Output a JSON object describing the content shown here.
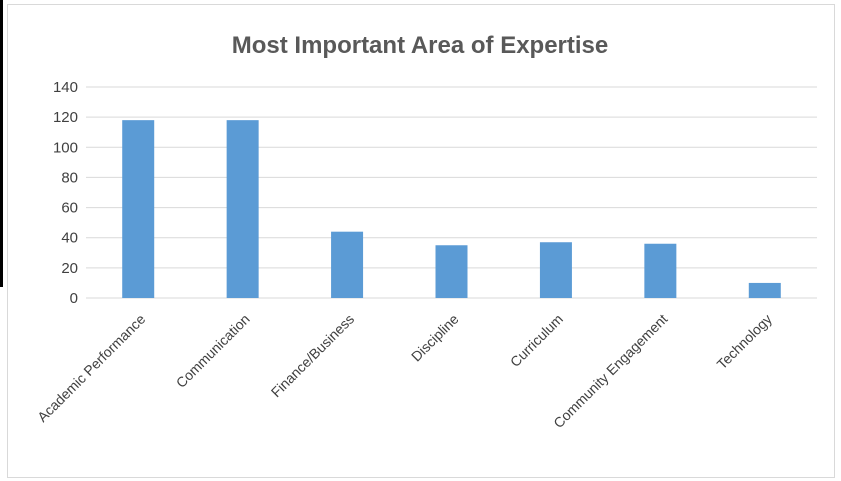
{
  "chart_data": {
    "type": "bar",
    "title": "Most Important Area of Expertise",
    "xlabel": "",
    "ylabel": "",
    "categories": [
      "Academic Performance",
      "Communication",
      "Finance/Business",
      "Discipline",
      "Curriculum",
      "Community Engagement",
      "Technology"
    ],
    "values": [
      118,
      118,
      44,
      35,
      37,
      36,
      10
    ],
    "ylim": [
      0,
      140
    ],
    "yticks": [
      0,
      20,
      40,
      60,
      80,
      100,
      120,
      140
    ],
    "grid": true,
    "legend": "none",
    "bar_color": "#5b9bd5",
    "grid_color": "#d9d9d9"
  }
}
